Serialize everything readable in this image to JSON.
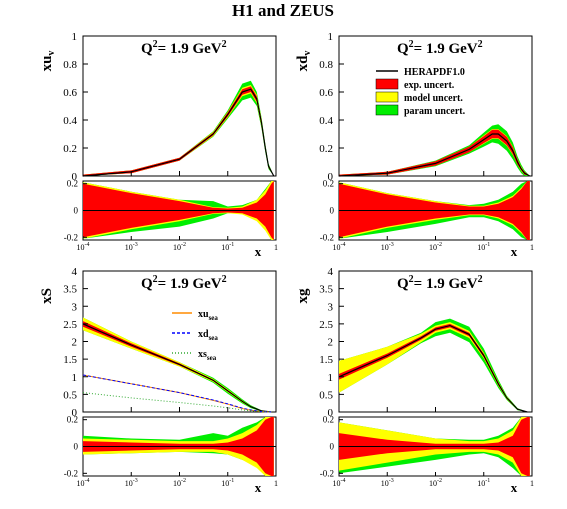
{
  "figure_title": "H1 and ZEUS",
  "colors": {
    "central": "#000000",
    "exp": "#ff0000",
    "model": "#ffff00",
    "param": "#00ee00",
    "xu_sea": "#ff8c00",
    "xd_sea": "#0000ff",
    "xs_sea": "#33aa33"
  },
  "legend": {
    "central": "HERAPDF1.0",
    "exp": "exp. uncert.",
    "model": "model uncert.",
    "param": "param uncert."
  },
  "sea_legend": {
    "xu": {
      "main": "xu",
      "sub": "sea"
    },
    "xd": {
      "main": "xd",
      "sub": "sea"
    },
    "xs": {
      "main": "xs",
      "sub": "sea"
    }
  },
  "chart_data": [
    {
      "type": "area",
      "panel": "xu_v",
      "ylabel": {
        "main": "xu",
        "sub": "v"
      },
      "q2": {
        "prefix": "Q",
        "sup": "2",
        "rest": "=  1.9 GeV",
        "sup2": "2"
      },
      "xlabel": "x",
      "xscale": "log",
      "xlim": [
        0.0001,
        1
      ],
      "ylim": [
        0,
        1
      ],
      "yticks": [
        "0",
        "0.2",
        "0.4",
        "0.6",
        "0.8",
        "1"
      ],
      "xticks": [
        "10-4",
        "10-3",
        "10-2",
        "10-1",
        "1"
      ],
      "x": [
        0.0001,
        0.001,
        0.01,
        0.05,
        0.1,
        0.2,
        0.3,
        0.4,
        0.5,
        0.6,
        0.7,
        0.9
      ],
      "central": [
        0.0,
        0.03,
        0.12,
        0.3,
        0.44,
        0.6,
        0.62,
        0.55,
        0.38,
        0.2,
        0.07,
        0.0
      ],
      "exp_band": [
        0.01,
        0.01,
        0.01,
        0.01,
        0.015,
        0.02,
        0.02,
        0.02,
        0.02,
        0.015,
        0.01,
        0.0
      ],
      "model_band": [
        0.01,
        0.01,
        0.01,
        0.015,
        0.02,
        0.03,
        0.03,
        0.03,
        0.03,
        0.02,
        0.01,
        0.0
      ],
      "param_band": [
        0.01,
        0.01,
        0.01,
        0.02,
        0.03,
        0.06,
        0.06,
        0.05,
        0.04,
        0.03,
        0.02,
        0.0
      ],
      "ratio": {
        "ylim": [
          -0.22,
          0.22
        ],
        "yticks": [
          "0.2",
          "0",
          "-0.2"
        ],
        "x": [
          0.0001,
          0.001,
          0.01,
          0.05,
          0.1,
          0.2,
          0.4,
          0.6,
          0.8,
          0.9
        ],
        "exp": [
          0.2,
          0.13,
          0.07,
          0.02,
          0.015,
          0.02,
          0.06,
          0.12,
          0.2,
          0.22
        ],
        "model": [
          0.21,
          0.14,
          0.08,
          0.025,
          0.02,
          0.03,
          0.08,
          0.15,
          0.22,
          0.22
        ],
        "param_up": [
          0.21,
          0.14,
          0.08,
          0.07,
          0.03,
          0.04,
          0.08,
          0.16,
          0.22,
          0.22
        ],
        "param_dn": [
          -0.21,
          -0.16,
          -0.12,
          -0.06,
          -0.02,
          -0.02,
          -0.05,
          -0.12,
          -0.22,
          -0.22
        ]
      }
    },
    {
      "type": "area",
      "panel": "xd_v",
      "ylabel": {
        "main": "xd",
        "sub": "v"
      },
      "q2": {
        "prefix": "Q",
        "sup": "2",
        "rest": "=  1.9 GeV",
        "sup2": "2"
      },
      "xlabel": "x",
      "xscale": "log",
      "xlim": [
        0.0001,
        1
      ],
      "ylim": [
        0,
        1
      ],
      "yticks": [
        "0",
        "0.2",
        "0.4",
        "0.6",
        "0.8",
        "1"
      ],
      "xticks": [
        "10-4",
        "10-3",
        "10-2",
        "10-1",
        "1"
      ],
      "x": [
        0.0001,
        0.001,
        0.01,
        0.05,
        0.1,
        0.15,
        0.2,
        0.3,
        0.4,
        0.5,
        0.6,
        0.7,
        0.9
      ],
      "central": [
        0.0,
        0.02,
        0.09,
        0.19,
        0.26,
        0.3,
        0.3,
        0.25,
        0.18,
        0.1,
        0.05,
        0.02,
        0.0
      ],
      "exp_band": [
        0.01,
        0.01,
        0.015,
        0.02,
        0.025,
        0.03,
        0.03,
        0.03,
        0.025,
        0.02,
        0.01,
        0.01,
        0.0
      ],
      "model_band": [
        0.01,
        0.01,
        0.015,
        0.02,
        0.03,
        0.035,
        0.035,
        0.035,
        0.03,
        0.02,
        0.015,
        0.01,
        0.0
      ],
      "param_band": [
        0.01,
        0.01,
        0.02,
        0.03,
        0.05,
        0.06,
        0.07,
        0.07,
        0.06,
        0.04,
        0.03,
        0.02,
        0.0
      ],
      "ratio": {
        "ylim": [
          -0.22,
          0.22
        ],
        "yticks": [
          "0.2",
          "0",
          "-0.2"
        ],
        "x": [
          0.0001,
          0.001,
          0.01,
          0.05,
          0.1,
          0.2,
          0.4,
          0.6,
          0.8,
          0.9
        ],
        "exp": [
          0.2,
          0.12,
          0.06,
          0.03,
          0.03,
          0.05,
          0.1,
          0.16,
          0.22,
          0.22
        ],
        "model": [
          0.21,
          0.13,
          0.07,
          0.035,
          0.035,
          0.06,
          0.11,
          0.17,
          0.22,
          0.22
        ],
        "param_up": [
          0.21,
          0.13,
          0.07,
          0.04,
          0.05,
          0.08,
          0.14,
          0.2,
          0.22,
          0.22
        ],
        "param_dn": [
          -0.21,
          -0.16,
          -0.1,
          -0.05,
          -0.05,
          -0.08,
          -0.14,
          -0.2,
          -0.22,
          -0.22
        ]
      }
    },
    {
      "type": "area",
      "panel": "xS",
      "ylabel": {
        "main": "xS",
        "sub": ""
      },
      "q2": {
        "prefix": "Q",
        "sup": "2",
        "rest": "=  1.9 GeV",
        "sup2": "2"
      },
      "xlabel": "x",
      "xscale": "log",
      "xlim": [
        0.0001,
        1
      ],
      "ylim": [
        0,
        4
      ],
      "yticks": [
        "0",
        "0.5",
        "1",
        "1.5",
        "2",
        "2.5",
        "3",
        "3.5",
        "4"
      ],
      "xticks": [
        "10-4",
        "10-3",
        "10-2",
        "10-1",
        "1"
      ],
      "x": [
        0.0001,
        0.001,
        0.01,
        0.05,
        0.1,
        0.2,
        0.3,
        0.5,
        0.8
      ],
      "central": [
        2.5,
        1.9,
        1.35,
        0.9,
        0.6,
        0.3,
        0.15,
        0.03,
        0.0
      ],
      "exp_band": [
        0.08,
        0.05,
        0.03,
        0.02,
        0.02,
        0.01,
        0.01,
        0.0,
        0.0
      ],
      "model_band": [
        0.18,
        0.1,
        0.06,
        0.04,
        0.04,
        0.03,
        0.02,
        0.01,
        0.0
      ],
      "param_band": [
        0.18,
        0.1,
        0.06,
        0.07,
        0.08,
        0.06,
        0.04,
        0.02,
        0.0
      ],
      "sea": {
        "x": [
          0.0001,
          0.001,
          0.01,
          0.05,
          0.1,
          0.2,
          0.3,
          0.5,
          0.8
        ],
        "xu": [
          1.05,
          0.8,
          0.55,
          0.33,
          0.22,
          0.1,
          0.05,
          0.01,
          0.0
        ],
        "xd": [
          1.05,
          0.8,
          0.55,
          0.34,
          0.23,
          0.11,
          0.06,
          0.01,
          0.0
        ],
        "xs": [
          0.55,
          0.4,
          0.27,
          0.17,
          0.12,
          0.06,
          0.03,
          0.01,
          0.0
        ]
      },
      "ratio": {
        "ylim": [
          -0.22,
          0.22
        ],
        "yticks": [
          "0.2",
          "0",
          "-0.2"
        ],
        "x": [
          0.0001,
          0.001,
          0.01,
          0.05,
          0.1,
          0.2,
          0.4,
          0.6,
          0.8,
          0.9
        ],
        "exp": [
          0.04,
          0.03,
          0.02,
          0.02,
          0.03,
          0.06,
          0.12,
          0.2,
          0.22,
          0.22
        ],
        "model": [
          0.06,
          0.05,
          0.04,
          0.04,
          0.06,
          0.1,
          0.16,
          0.22,
          0.22,
          0.22
        ],
        "param_up": [
          0.08,
          0.06,
          0.05,
          0.1,
          0.08,
          0.14,
          0.18,
          0.22,
          0.22,
          0.22
        ],
        "param_dn": [
          -0.06,
          -0.05,
          -0.04,
          -0.05,
          -0.06,
          -0.1,
          -0.14,
          -0.22,
          -0.22,
          -0.22
        ]
      }
    },
    {
      "type": "area",
      "panel": "xg",
      "ylabel": {
        "main": "xg",
        "sub": ""
      },
      "q2": {
        "prefix": "Q",
        "sup": "2",
        "rest": "=  1.9 GeV",
        "sup2": "2"
      },
      "xlabel": "x",
      "xscale": "log",
      "xlim": [
        0.0001,
        1
      ],
      "ylim": [
        0,
        4
      ],
      "yticks": [
        "0",
        "0.5",
        "1",
        "1.5",
        "2",
        "2.5",
        "3",
        "3.5",
        "4"
      ],
      "xticks": [
        "10-4",
        "10-3",
        "10-2",
        "10-1",
        "1"
      ],
      "x": [
        0.0001,
        0.001,
        0.005,
        0.01,
        0.02,
        0.05,
        0.1,
        0.2,
        0.3,
        0.5,
        0.8
      ],
      "central": [
        1.0,
        1.6,
        2.1,
        2.35,
        2.45,
        2.2,
        1.6,
        0.8,
        0.4,
        0.08,
        0.0
      ],
      "exp_band": [
        0.08,
        0.06,
        0.05,
        0.05,
        0.05,
        0.05,
        0.05,
        0.04,
        0.02,
        0.01,
        0.0
      ],
      "model_band": [
        0.45,
        0.25,
        0.12,
        0.1,
        0.1,
        0.1,
        0.08,
        0.06,
        0.04,
        0.02,
        0.0
      ],
      "param_band": [
        0.45,
        0.25,
        0.15,
        0.2,
        0.2,
        0.22,
        0.2,
        0.12,
        0.06,
        0.03,
        0.0
      ],
      "ratio": {
        "ylim": [
          -0.22,
          0.22
        ],
        "yticks": [
          "0.2",
          "0",
          "-0.2"
        ],
        "x": [
          0.0001,
          0.001,
          0.01,
          0.05,
          0.1,
          0.2,
          0.4,
          0.6,
          0.8,
          0.9
        ],
        "exp": [
          0.1,
          0.05,
          0.02,
          0.02,
          0.02,
          0.03,
          0.08,
          0.2,
          0.22,
          0.22
        ],
        "model": [
          0.18,
          0.12,
          0.06,
          0.04,
          0.04,
          0.06,
          0.12,
          0.22,
          0.22,
          0.22
        ],
        "param_up": [
          0.18,
          0.12,
          0.06,
          0.05,
          0.05,
          0.08,
          0.14,
          0.22,
          0.22,
          0.22
        ],
        "param_dn": [
          -0.2,
          -0.15,
          -0.1,
          -0.06,
          -0.05,
          -0.08,
          -0.16,
          -0.22,
          -0.22,
          -0.22
        ]
      }
    }
  ]
}
